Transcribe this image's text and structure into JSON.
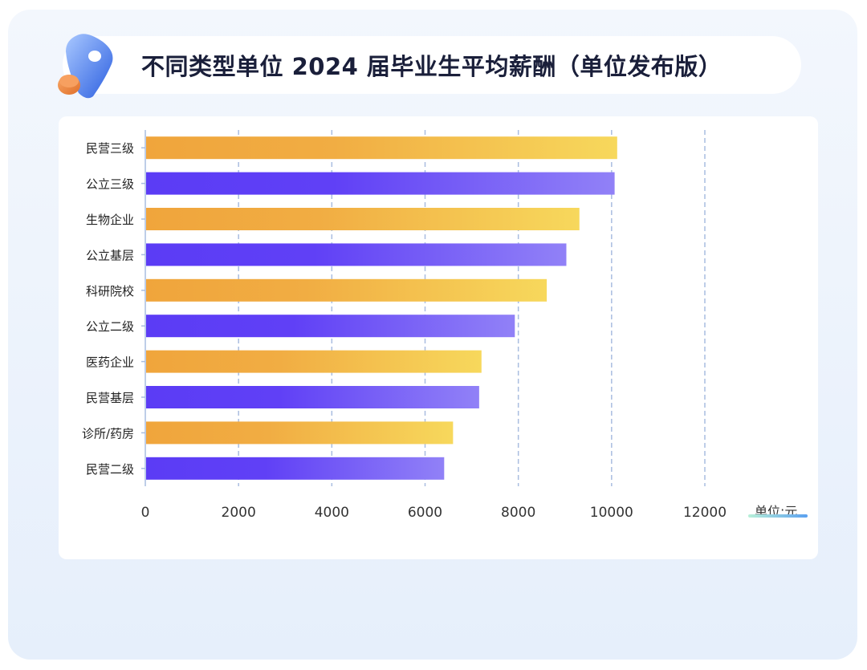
{
  "title": "不同类型单位 2024 届毕业生平均薪酬（单位发布版）",
  "unit_label": "单位:元",
  "colors": {
    "orange_start": "#f0a53c",
    "orange_end": "#f7d85c",
    "purple_start": "#5b3cf5",
    "purple_end": "#9181f7",
    "grid": "#a9bde0"
  },
  "chart_data": {
    "type": "bar",
    "orientation": "horizontal",
    "title": "不同类型单位 2024 届毕业生平均薪酬（单位发布版）",
    "xlabel": "单位:元",
    "ylabel": "",
    "categories": [
      "民营三级",
      "公立三级",
      "生物企业",
      "公立基层",
      "科研院校",
      "公立二级",
      "医药企业",
      "民营基层",
      "诊所/药房",
      "民营二级"
    ],
    "values": [
      10120,
      10065,
      9310,
      9030,
      8610,
      7925,
      7210,
      7160,
      6600,
      6410
    ],
    "xlim": [
      0,
      12000
    ],
    "xticks": [
      "0",
      "2000",
      "4000",
      "6000",
      "8000",
      "10000",
      "12000"
    ],
    "grid": "vertical dashed"
  }
}
